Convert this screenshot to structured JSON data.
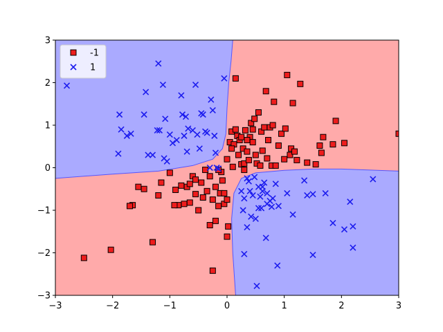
{
  "chart_data": {
    "type": "scatter",
    "title": "",
    "xlabel": "",
    "ylabel": "",
    "xlim": [
      -3,
      3
    ],
    "ylim": [
      -3,
      3
    ],
    "xticks": [
      -3,
      -2,
      -1,
      0,
      1,
      2,
      3
    ],
    "yticks": [
      -3,
      -2,
      -1,
      0,
      1,
      2,
      3
    ],
    "xtick_labels": [
      "−3",
      "−2",
      "−1",
      "0",
      "1",
      "2",
      "3"
    ],
    "ytick_labels": [
      "−3",
      "−2",
      "−1",
      "0",
      "1",
      "2",
      "3"
    ],
    "grid": false,
    "legend": {
      "position": "top-left"
    },
    "colors": {
      "region_neg": "#ffaaaa",
      "region_pos": "#aaaaff",
      "boundary_neg": "#ff5555",
      "boundary_pos": "#5555ff",
      "marker_neg": "#ee1c1c",
      "marker_pos": "#1c1cee"
    },
    "decision_regions": {
      "description_values": "class 1 where x*y < 0 (upper-left and lower-right), class -1 where x*y > 0",
      "upper_left_boundary": [
        [
          -3.0,
          -0.25
        ],
        [
          -2.0,
          -0.15
        ],
        [
          -1.2,
          -0.08
        ],
        [
          -0.6,
          0.05
        ],
        [
          -0.25,
          0.2
        ],
        [
          -0.08,
          0.45
        ],
        [
          -0.02,
          0.8
        ],
        [
          0.0,
          1.4
        ],
        [
          0.03,
          2.0
        ],
        [
          0.07,
          2.5
        ],
        [
          0.1,
          3.0
        ]
      ],
      "lower_right_boundary": [
        [
          0.15,
          -3.0
        ],
        [
          0.1,
          -2.0
        ],
        [
          0.08,
          -1.2
        ],
        [
          0.12,
          -0.6
        ],
        [
          0.25,
          -0.25
        ],
        [
          0.5,
          -0.12
        ],
        [
          1.0,
          -0.06
        ],
        [
          1.5,
          -0.03
        ],
        [
          2.0,
          -0.03
        ],
        [
          3.0,
          -0.08
        ]
      ]
    },
    "series": [
      {
        "name": "-1",
        "marker": "square",
        "points": [
          [
            -2.5,
            -2.12
          ],
          [
            -2.03,
            -1.93
          ],
          [
            -1.65,
            -0.88
          ],
          [
            -1.55,
            -0.45
          ],
          [
            -1.45,
            -0.5
          ],
          [
            -1.3,
            -1.75
          ],
          [
            -1.2,
            -0.65
          ],
          [
            -1.15,
            -0.35
          ],
          [
            -1.0,
            -0.12
          ],
          [
            -0.9,
            -0.52
          ],
          [
            -0.85,
            -0.88
          ],
          [
            -0.8,
            -0.42
          ],
          [
            -0.75,
            -0.85
          ],
          [
            -0.7,
            -0.45
          ],
          [
            -0.65,
            -0.38
          ],
          [
            -0.6,
            -0.2
          ],
          [
            -0.5,
            -1.0
          ],
          [
            -0.45,
            -0.35
          ],
          [
            -0.42,
            -0.7
          ],
          [
            -0.35,
            -0.55
          ],
          [
            -0.3,
            -0.2
          ],
          [
            -0.3,
            -1.35
          ],
          [
            -0.25,
            -2.42
          ],
          [
            -0.2,
            -1.25
          ],
          [
            -0.2,
            -0.45
          ],
          [
            -0.15,
            -0.9
          ],
          [
            -0.12,
            -0.6
          ],
          [
            -0.1,
            -0.1
          ],
          [
            -0.08,
            -0.3
          ],
          [
            -0.05,
            -0.85
          ],
          [
            0.0,
            -0.75
          ],
          [
            0.0,
            -1.62
          ],
          [
            0.02,
            -1.38
          ],
          [
            -0.55,
            -0.28
          ],
          [
            -0.38,
            -0.05
          ],
          [
            -0.15,
            -0.05
          ],
          [
            -0.05,
            -0.6
          ],
          [
            -0.65,
            -0.82
          ],
          [
            -0.55,
            -0.62
          ],
          [
            -0.92,
            -0.88
          ],
          [
            -1.7,
            -0.9
          ],
          [
            -0.25,
            -0.75
          ],
          [
            0.0,
            0.2
          ],
          [
            0.05,
            0.6
          ],
          [
            0.08,
            0.85
          ],
          [
            0.1,
            0.02
          ],
          [
            0.12,
            0.55
          ],
          [
            0.15,
            0.9
          ],
          [
            0.15,
            2.1
          ],
          [
            0.18,
            0.75
          ],
          [
            0.2,
            0.3
          ],
          [
            0.22,
            0.65
          ],
          [
            0.25,
            0.08
          ],
          [
            0.28,
            0.45
          ],
          [
            0.3,
            -0.05
          ],
          [
            0.3,
            0.1
          ],
          [
            0.32,
            0.88
          ],
          [
            0.35,
            0.38
          ],
          [
            0.38,
            0.18
          ],
          [
            0.4,
            0.72
          ],
          [
            0.42,
            1.05
          ],
          [
            0.45,
            0.6
          ],
          [
            0.48,
            1.15
          ],
          [
            0.5,
            0.3
          ],
          [
            0.52,
            0.1
          ],
          [
            0.55,
            1.3
          ],
          [
            0.58,
            0.05
          ],
          [
            0.6,
            0.85
          ],
          [
            0.62,
            0.4
          ],
          [
            0.65,
            0.95
          ],
          [
            0.68,
            1.8
          ],
          [
            0.7,
            0.22
          ],
          [
            0.72,
            0.65
          ],
          [
            0.75,
            0.95
          ],
          [
            0.78,
            0.05
          ],
          [
            0.8,
            1.0
          ],
          [
            0.82,
            1.55
          ],
          [
            0.85,
            0.05
          ],
          [
            0.9,
            0.52
          ],
          [
            0.95,
            0.8
          ],
          [
            1.0,
            0.2
          ],
          [
            1.02,
            0.92
          ],
          [
            1.05,
            2.18
          ],
          [
            1.1,
            0.3
          ],
          [
            1.12,
            0.45
          ],
          [
            1.15,
            1.52
          ],
          [
            1.18,
            0.38
          ],
          [
            1.22,
            0.18
          ],
          [
            1.28,
            1.97
          ],
          [
            1.4,
            0.12
          ],
          [
            1.55,
            0.08
          ],
          [
            1.62,
            0.52
          ],
          [
            1.65,
            0.35
          ],
          [
            1.68,
            0.72
          ],
          [
            1.85,
            0.55
          ],
          [
            1.9,
            1.1
          ],
          [
            2.05,
            0.58
          ],
          [
            3.0,
            0.8
          ],
          [
            0.25,
            0.72
          ],
          [
            0.45,
            0.9
          ],
          [
            0.35,
            0.65
          ],
          [
            0.08,
            0.45
          ]
        ]
      },
      {
        "name": "1",
        "marker": "x",
        "points": [
          [
            -2.8,
            1.93
          ],
          [
            -1.9,
            0.33
          ],
          [
            -1.88,
            1.25
          ],
          [
            -1.85,
            0.9
          ],
          [
            -1.75,
            0.75
          ],
          [
            -1.68,
            0.8
          ],
          [
            -1.45,
            1.25
          ],
          [
            -1.42,
            1.78
          ],
          [
            -1.38,
            0.3
          ],
          [
            -1.3,
            0.3
          ],
          [
            -1.22,
            0.88
          ],
          [
            -1.2,
            2.45
          ],
          [
            -1.18,
            0.88
          ],
          [
            -1.12,
            1.95
          ],
          [
            -1.1,
            0.22
          ],
          [
            -1.08,
            1.15
          ],
          [
            -1.05,
            0.15
          ],
          [
            -1.0,
            0.78
          ],
          [
            -0.95,
            0.58
          ],
          [
            -0.88,
            0.65
          ],
          [
            -0.8,
            1.7
          ],
          [
            -0.78,
            1.25
          ],
          [
            -0.75,
            0.75
          ],
          [
            -0.72,
            1.2
          ],
          [
            -0.7,
            0.38
          ],
          [
            -0.68,
            0.92
          ],
          [
            -0.6,
            0.88
          ],
          [
            -0.55,
            1.95
          ],
          [
            -0.52,
            0.78
          ],
          [
            -0.48,
            0.45
          ],
          [
            -0.45,
            1.28
          ],
          [
            -0.42,
            1.25
          ],
          [
            -0.38,
            0.85
          ],
          [
            -0.35,
            0.82
          ],
          [
            -0.3,
            0.0
          ],
          [
            -0.28,
            1.6
          ],
          [
            -0.25,
            1.35
          ],
          [
            -0.22,
            0.75
          ],
          [
            -0.2,
            0.35
          ],
          [
            -0.18,
            0.0
          ],
          [
            -0.15,
            -0.02
          ],
          [
            -0.05,
            2.1
          ],
          [
            0.25,
            -0.55
          ],
          [
            0.28,
            -1.0
          ],
          [
            0.3,
            -0.72
          ],
          [
            0.3,
            -2.03
          ],
          [
            0.35,
            -1.4
          ],
          [
            0.38,
            -0.32
          ],
          [
            0.42,
            -1.15
          ],
          [
            0.45,
            -0.65
          ],
          [
            0.48,
            -0.22
          ],
          [
            0.5,
            -1.2
          ],
          [
            0.52,
            -2.78
          ],
          [
            0.55,
            -0.45
          ],
          [
            0.58,
            -0.68
          ],
          [
            0.6,
            -0.95
          ],
          [
            0.62,
            -0.45
          ],
          [
            0.65,
            -0.35
          ],
          [
            0.68,
            -1.65
          ],
          [
            0.7,
            -0.6
          ],
          [
            0.75,
            -0.78
          ],
          [
            0.78,
            -0.92
          ],
          [
            0.8,
            -0.72
          ],
          [
            0.85,
            -0.38
          ],
          [
            0.88,
            -2.3
          ],
          [
            0.9,
            -0.9
          ],
          [
            1.05,
            -0.6
          ],
          [
            1.15,
            -1.1
          ],
          [
            1.35,
            -0.3
          ],
          [
            1.4,
            -0.65
          ],
          [
            1.5,
            -0.62
          ],
          [
            1.5,
            -2.05
          ],
          [
            1.72,
            -0.6
          ],
          [
            1.85,
            -1.3
          ],
          [
            2.05,
            -1.45
          ],
          [
            2.15,
            -0.8
          ],
          [
            2.2,
            -1.38
          ],
          [
            2.2,
            -1.88
          ],
          [
            2.55,
            -0.27
          ],
          [
            0.35,
            -0.25
          ],
          [
            0.4,
            -0.55
          ],
          [
            0.62,
            -0.55
          ],
          [
            0.7,
            -0.85
          ],
          [
            0.55,
            -0.95
          ]
        ]
      }
    ]
  }
}
